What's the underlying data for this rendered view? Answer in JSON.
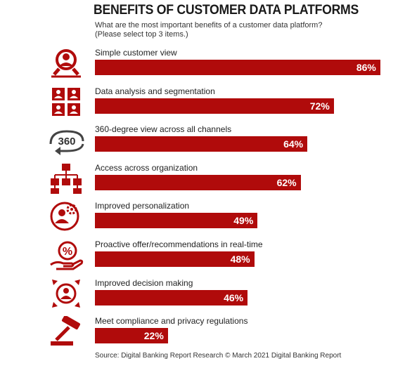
{
  "title": "BENEFITS OF CUSTOMER DATA PLATFORMS",
  "subtitle_line1": "What are the most important benefits of a customer data platform?",
  "subtitle_line2": "(Please select top 3 items.)",
  "source": "Source: Digital Banking Report Research © March 2021 Digital Banking Report",
  "colors": {
    "bar": "#b00b0b",
    "icon": "#b00b0b"
  },
  "chart_data": {
    "type": "bar",
    "orientation": "horizontal",
    "title": "BENEFITS OF CUSTOMER DATA PLATFORMS",
    "xlim": [
      0,
      100
    ],
    "grid": false,
    "categories": [
      "Simple customer view",
      "Data analysis and segmentation",
      "360-degree view across all channels",
      "Access across organization",
      "Improved personalization",
      "Proactive offer/recommendations in real-time",
      "Improved decision making",
      "Meet compliance and privacy regulations"
    ],
    "values": [
      86,
      72,
      64,
      62,
      49,
      48,
      46,
      22
    ],
    "value_labels": [
      "86%",
      "72%",
      "64%",
      "62%",
      "49%",
      "48%",
      "46%",
      "22%"
    ],
    "icons": [
      "magnifier-person-icon",
      "grid-people-icon",
      "rotate-360-icon",
      "org-chart-icon",
      "person-gear-icon",
      "hand-percent-icon",
      "person-arrows-icon",
      "gavel-icon"
    ],
    "icon_text_360": "360"
  }
}
